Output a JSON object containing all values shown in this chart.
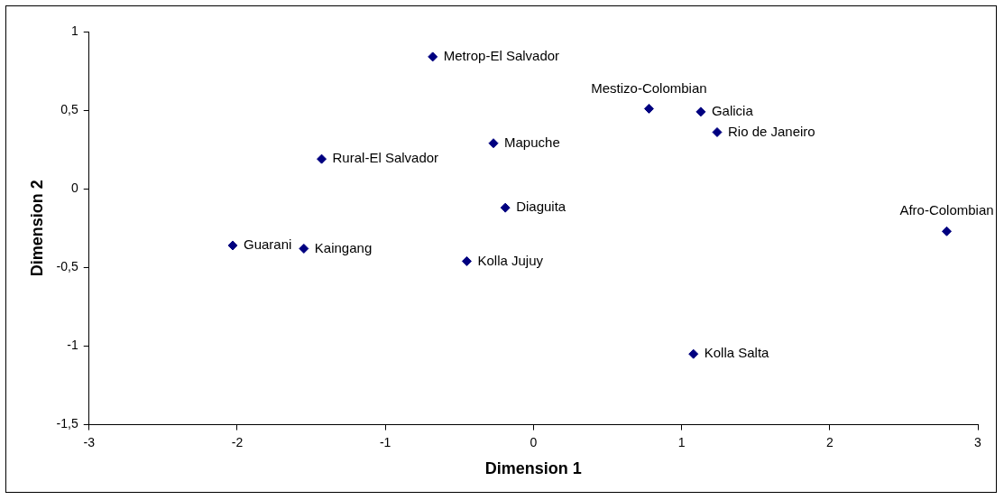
{
  "chart_data": {
    "type": "scatter",
    "xlabel": "Dimension 1",
    "ylabel": "Dimension 2",
    "xlim": [
      -3,
      3
    ],
    "xticks": [
      -3,
      -2,
      -1,
      0,
      1,
      2,
      3
    ],
    "ylim": [
      -1.5,
      1
    ],
    "yticks": [
      {
        "value": -1.5,
        "label": "-1,5"
      },
      -1,
      {
        "value": -0.5,
        "label": "-0,5"
      },
      0,
      {
        "value": 0.5,
        "label": "0,5"
      },
      1
    ],
    "grid": false,
    "legend": false,
    "marker": "diamond",
    "series": [
      {
        "color": "#000080",
        "x": [
          -0.68,
          0.78,
          1.13,
          1.24,
          -0.27,
          -1.43,
          -0.19,
          -2.03,
          -1.55,
          -0.45,
          2.79,
          1.08
        ],
        "values": [
          0.84,
          0.51,
          0.49,
          0.36,
          0.29,
          0.19,
          -0.12,
          -0.36,
          -0.38,
          -0.46,
          -0.27,
          -1.05
        ],
        "value_labels": [
          "Metrop-El Salvador",
          "Mestizo-Colombian",
          "Galicia",
          "Rio de Janeiro",
          "Mapuche",
          "Rural-El Salvador",
          "Diaguita",
          "Guarani",
          "Kaingang",
          "Kolla Jujuy",
          "Afro-Colombian",
          "Kolla Salta"
        ]
      }
    ]
  }
}
